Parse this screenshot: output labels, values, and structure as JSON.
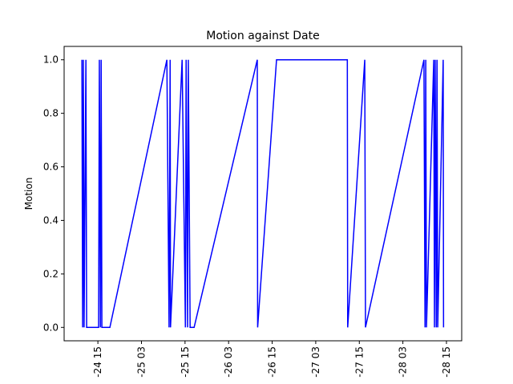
{
  "chart_data": {
    "type": "line",
    "title": "Motion against Date",
    "y_label": "Motion",
    "series": [
      {
        "name": "Motion",
        "color": "#0000ff",
        "x": [
          10.6,
          10.8,
          11.0,
          11.2,
          11.7,
          11.9,
          15.2,
          15.4,
          15.7,
          15.9,
          16.1,
          18.3,
          34.0,
          34.6,
          34.9,
          35.0,
          38.2,
          39.1,
          39.3,
          39.7,
          39.9,
          40.4,
          41.5,
          58.9,
          59.0,
          64.2,
          83.7,
          83.8,
          88.5,
          88.7,
          104.8,
          105.1,
          105.3,
          105.5,
          107.5,
          107.7,
          107.9,
          108.2,
          108.4,
          108.6,
          110.1,
          110.2
        ],
        "values": [
          1,
          0,
          1,
          0,
          1,
          0,
          0,
          1,
          0,
          1,
          0,
          0,
          1,
          0,
          1,
          0,
          1,
          0,
          1,
          0,
          1,
          0,
          0,
          1,
          0,
          1,
          1,
          0,
          1,
          0,
          1,
          0,
          1,
          0,
          1,
          0,
          1,
          0,
          1,
          0,
          1,
          0
        ]
      }
    ],
    "xlim": [
      5.7,
      115.2
    ],
    "xticks": [
      {
        "value": 15,
        "label": "-24 15"
      },
      {
        "value": 27,
        "label": "-25 03"
      },
      {
        "value": 39,
        "label": "-25 15"
      },
      {
        "value": 51,
        "label": "-26 03"
      },
      {
        "value": 63,
        "label": "-26 15"
      },
      {
        "value": 75,
        "label": "-27 03"
      },
      {
        "value": 87,
        "label": "-27 15"
      },
      {
        "value": 99,
        "label": "-28 03"
      },
      {
        "value": 111,
        "label": "-28 15"
      }
    ],
    "ylim": [
      -0.05,
      1.05
    ],
    "yticks": [
      {
        "value": 0,
        "label": "0.0"
      },
      {
        "value": 0.2,
        "label": "0.2"
      },
      {
        "value": 0.4,
        "label": "0.4"
      },
      {
        "value": 0.6,
        "label": "0.6"
      },
      {
        "value": 0.8,
        "label": "0.8"
      },
      {
        "value": 1,
        "label": "1.0"
      }
    ],
    "grid": false
  }
}
